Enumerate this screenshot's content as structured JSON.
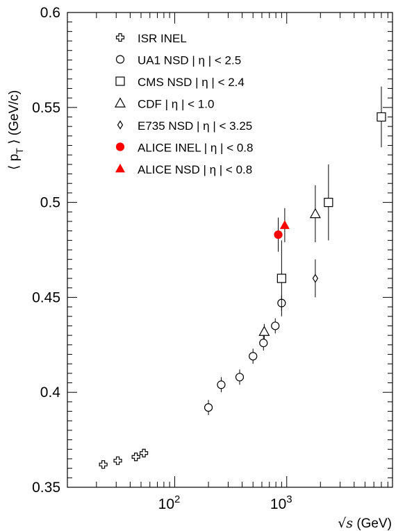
{
  "chart_data": {
    "type": "scatter",
    "title": "",
    "xlabel": "√s (GeV)",
    "ylabel": "⟨ p_T ⟩ (GeV/c)",
    "xscale": "log",
    "xlim": [
      11,
      8800
    ],
    "ylim": [
      0.35,
      0.6
    ],
    "grid": false,
    "legend_position": "top-left",
    "x_ticks": [
      {
        "value": 100,
        "base": "10",
        "exp": "2"
      },
      {
        "value": 1000,
        "base": "10",
        "exp": "3"
      }
    ],
    "y_ticks": [
      {
        "value": 0.35,
        "label": "0.35"
      },
      {
        "value": 0.4,
        "label": "0.4"
      },
      {
        "value": 0.45,
        "label": "0.45"
      },
      {
        "value": 0.5,
        "label": "0.5"
      },
      {
        "value": 0.55,
        "label": "0.55"
      },
      {
        "value": 0.6,
        "label": "0.6"
      }
    ],
    "series": [
      {
        "name": "ISR INEL",
        "marker": "cross-open",
        "color": "#000000",
        "points": [
          {
            "x": 23,
            "y": 0.362,
            "err": 0.002
          },
          {
            "x": 31,
            "y": 0.364,
            "err": 0.002
          },
          {
            "x": 45,
            "y": 0.366,
            "err": 0.002
          },
          {
            "x": 53,
            "y": 0.368,
            "err": 0.002
          }
        ]
      },
      {
        "name": "UA1 NSD | η | < 2.5",
        "marker": "circle-open",
        "color": "#000000",
        "points": [
          {
            "x": 200,
            "y": 0.392,
            "err": 0.004
          },
          {
            "x": 260,
            "y": 0.404,
            "err": 0.004
          },
          {
            "x": 380,
            "y": 0.408,
            "err": 0.004
          },
          {
            "x": 500,
            "y": 0.419,
            "err": 0.004
          },
          {
            "x": 620,
            "y": 0.426,
            "err": 0.004
          },
          {
            "x": 790,
            "y": 0.435,
            "err": 0.004
          },
          {
            "x": 900,
            "y": 0.447,
            "err": 0.004
          }
        ]
      },
      {
        "name": "CMS NSD | η | < 2.4",
        "marker": "square-open",
        "color": "#000000",
        "points": [
          {
            "x": 900,
            "y": 0.46,
            "err": 0.02
          },
          {
            "x": 2360,
            "y": 0.5,
            "err": 0.02
          },
          {
            "x": 7000,
            "y": 0.545,
            "err": 0.016
          }
        ]
      },
      {
        "name": "CDF | η | < 1.0",
        "marker": "triangle-open",
        "color": "#000000",
        "points": [
          {
            "x": 630,
            "y": 0.432,
            "err": 0.004
          },
          {
            "x": 1800,
            "y": 0.494,
            "err": 0.015
          }
        ]
      },
      {
        "name": "E735 NSD | η | < 3.25",
        "marker": "diamond-open",
        "color": "#000000",
        "points": [
          {
            "x": 1800,
            "y": 0.46,
            "err": 0.01
          }
        ]
      },
      {
        "name": "ALICE INEL | η | < 0.8",
        "marker": "circle-filled",
        "color": "#ff0000",
        "points": [
          {
            "x": 840,
            "y": 0.483,
            "err": 0.009
          }
        ]
      },
      {
        "name": "ALICE NSD | η | < 0.8",
        "marker": "triangle-filled",
        "color": "#ff0000",
        "points": [
          {
            "x": 960,
            "y": 0.488,
            "err": 0.009
          }
        ]
      }
    ]
  }
}
